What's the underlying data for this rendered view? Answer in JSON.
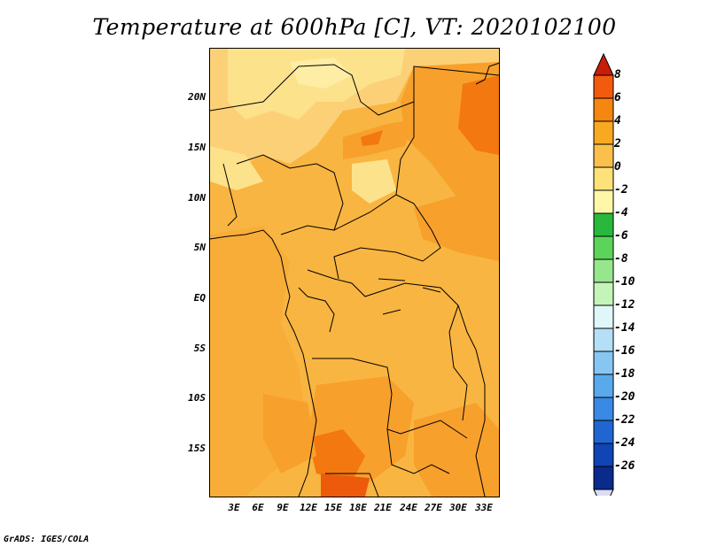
{
  "title": "Temperature at 600hPa [C], VT: 2020102100",
  "credit": "GrADS: IGES/COLA",
  "map": {
    "lat_labels": [
      "20N",
      "15N",
      "10N",
      "5N",
      "EQ",
      "5S",
      "10S",
      "15S"
    ],
    "lon_labels": [
      "3E",
      "6E",
      "9E",
      "12E",
      "15E",
      "18E",
      "21E",
      "24E",
      "27E",
      "30E",
      "33E"
    ]
  },
  "colorbar": {
    "labels": [
      "8",
      "6",
      "4",
      "2",
      "0",
      "-2",
      "-4",
      "-6",
      "-8",
      "-10",
      "-12",
      "-14",
      "-16",
      "-18",
      "-20",
      "-22",
      "-24",
      "-26"
    ],
    "colors_top_to_bottom": [
      "#e8250d",
      "#f25a0d",
      "#f5860f",
      "#f9a822",
      "#fbc04b",
      "#fde27a",
      "#fdf7a8",
      "#27b83c",
      "#5cd45a",
      "#96e68d",
      "#c4f4b8",
      "#e0f7f9",
      "#b5dff6",
      "#87c6f2",
      "#5aa9ec",
      "#3a89e4",
      "#1f66d1",
      "#0f45b5",
      "#0a2a8c"
    ],
    "top_arrow_color": "#c81e07",
    "bottom_arrow_color": "#dcdcf5"
  }
}
